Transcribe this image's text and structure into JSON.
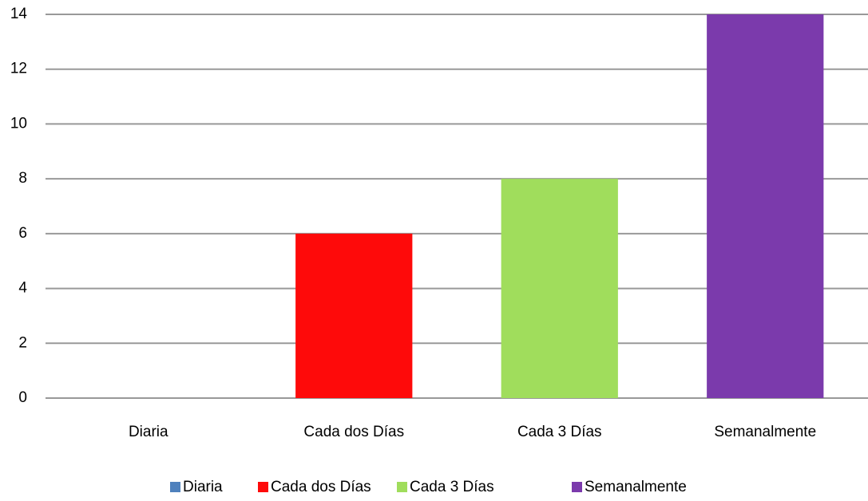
{
  "chart_data": {
    "type": "bar",
    "categories": [
      "Diaria",
      "Cada dos Días",
      "Cada 3 Días",
      "Semanalmente"
    ],
    "values": [
      0,
      6,
      8,
      14
    ],
    "colors": [
      "#4f81bd",
      "#fe0a0a",
      "#a0dd5c",
      "#7b3aac"
    ],
    "ylim": [
      0,
      14
    ],
    "yticks": [
      0,
      2,
      4,
      6,
      8,
      10,
      12,
      14
    ],
    "grid": true,
    "legend": "bottom"
  }
}
